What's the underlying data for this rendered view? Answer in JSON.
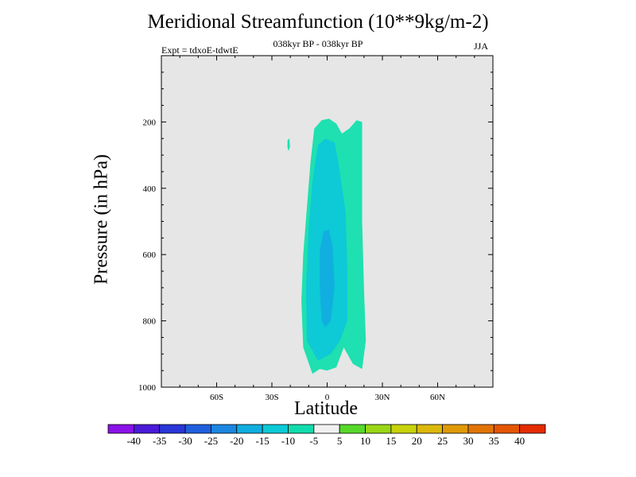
{
  "title": "Meridional Streamfunction (10**9kg/m-2)",
  "subtitle": "038kyr BP - 038kyr BP",
  "experiment_label": "Expt = tdxoE-tdwtE",
  "season": "JJA",
  "chart_data": {
    "type": "contour",
    "xlabel": "Latitude",
    "ylabel": "Pressure (in hPa)",
    "xlim": [
      -90,
      90
    ],
    "ylim": [
      1000,
      0
    ],
    "x_ticks": [
      {
        "value": -60,
        "label": "60S"
      },
      {
        "value": -30,
        "label": "30S"
      },
      {
        "value": 0,
        "label": "0"
      },
      {
        "value": 30,
        "label": "30N"
      },
      {
        "value": 60,
        "label": "60N"
      }
    ],
    "y_ticks": [
      {
        "value": 200,
        "label": "200"
      },
      {
        "value": 400,
        "label": "400"
      },
      {
        "value": 600,
        "label": "600"
      },
      {
        "value": 800,
        "label": "800"
      },
      {
        "value": 1000,
        "label": "1000"
      }
    ],
    "colorbar": {
      "labels": [
        "-40",
        "-35",
        "-30",
        "-25",
        "-20",
        "-15",
        "-10",
        "-5",
        "5",
        "10",
        "15",
        "20",
        "25",
        "30",
        "35",
        "40"
      ],
      "colors": [
        "#8a12e8",
        "#4a1ad8",
        "#2a36d8",
        "#1f5fdd",
        "#1c86e0",
        "#10aee0",
        "#0cc9d6",
        "#12dcae",
        "#f0f0f0",
        "#58d82a",
        "#9ad616",
        "#c8d20c",
        "#dcb80a",
        "#e09a08",
        "#e27406",
        "#e45604",
        "#e42c02"
      ]
    },
    "regions": [
      {
        "level": "-10 to -5",
        "color": "#1fe0b0",
        "points": [
          [
            -8,
            960
          ],
          [
            -13,
            880
          ],
          [
            -14,
            740
          ],
          [
            -13,
            600
          ],
          [
            -11,
            460
          ],
          [
            -9,
            320
          ],
          [
            -7,
            220
          ],
          [
            -3,
            195
          ],
          [
            1,
            190
          ],
          [
            5,
            205
          ],
          [
            8,
            235
          ],
          [
            12,
            220
          ],
          [
            16,
            195
          ],
          [
            19,
            200
          ],
          [
            19,
            310
          ],
          [
            19,
            500
          ],
          [
            20,
            700
          ],
          [
            21,
            860
          ],
          [
            19,
            945
          ],
          [
            14,
            930
          ],
          [
            9,
            880
          ],
          [
            5,
            940
          ],
          [
            0,
            950
          ],
          [
            -4,
            945
          ]
        ]
      },
      {
        "level": "-10 to -5",
        "color": "#1fe0b0",
        "points": [
          [
            -21.5,
            255
          ],
          [
            -20.5,
            250
          ],
          [
            -20.2,
            275
          ],
          [
            -21,
            288
          ],
          [
            -21.6,
            275
          ]
        ]
      },
      {
        "level": "-15 to -10",
        "color": "#0dcad6",
        "points": [
          [
            -5,
            920
          ],
          [
            -11,
            860
          ],
          [
            -11.5,
            700
          ],
          [
            -10,
            520
          ],
          [
            -8,
            380
          ],
          [
            -5,
            270
          ],
          [
            -1,
            250
          ],
          [
            4,
            262
          ],
          [
            6,
            320
          ],
          [
            10,
            470
          ],
          [
            11,
            650
          ],
          [
            11,
            800
          ],
          [
            7,
            860
          ],
          [
            2,
            900
          ]
        ]
      },
      {
        "level": "-20 to -15",
        "color": "#11afe0",
        "points": [
          [
            -3,
            800
          ],
          [
            -4,
            700
          ],
          [
            -4,
            590
          ],
          [
            -2,
            530
          ],
          [
            1,
            525
          ],
          [
            3,
            575
          ],
          [
            4,
            700
          ],
          [
            2,
            800
          ],
          [
            -1,
            820
          ]
        ]
      }
    ]
  }
}
